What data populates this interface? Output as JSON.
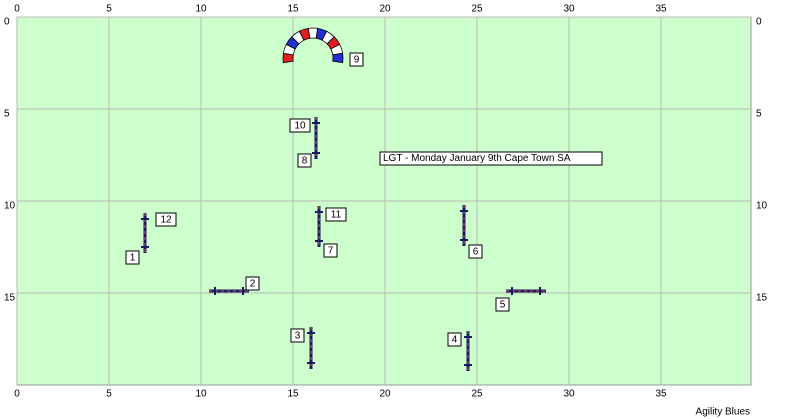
{
  "axes": {
    "xlim": [
      0,
      40
    ],
    "ylim": [
      0,
      20
    ],
    "xticks": [
      0,
      5,
      10,
      15,
      20,
      25,
      30,
      35
    ],
    "yticks": [
      0,
      5,
      10,
      15
    ]
  },
  "obstacles": [
    {
      "label": "12"
    },
    {
      "label": "1"
    },
    {
      "label": "2"
    },
    {
      "label": "3"
    },
    {
      "label": "4"
    },
    {
      "label": "5"
    },
    {
      "label": "6"
    },
    {
      "label": "11"
    },
    {
      "label": "7"
    },
    {
      "label": "10"
    },
    {
      "label": "8"
    },
    {
      "label": "9"
    }
  ],
  "note": "LGT - Monday January 9th Cape Town SA",
  "footer": "Agility Blues"
}
